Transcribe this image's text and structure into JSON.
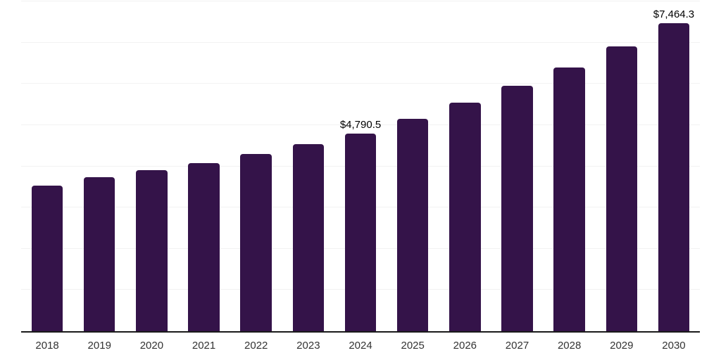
{
  "chart_data": {
    "type": "bar",
    "title": "",
    "xlabel": "",
    "ylabel": "",
    "categories": [
      "2018",
      "2019",
      "2020",
      "2021",
      "2022",
      "2023",
      "2024",
      "2025",
      "2026",
      "2027",
      "2028",
      "2029",
      "2030"
    ],
    "values": [
      3530,
      3740,
      3910,
      4080,
      4300,
      4530,
      4790.5,
      5160,
      5540,
      5960,
      6400,
      6910,
      7464.3
    ],
    "bar_labels": [
      "",
      "",
      "",
      "",
      "",
      "",
      "$4,790.5",
      "",
      "",
      "",
      "",
      "",
      "$7,464.3"
    ],
    "ylim": [
      0,
      8000
    ],
    "gridline_values": [
      1000,
      2000,
      3000,
      4000,
      5000,
      6000,
      7000,
      8000
    ],
    "grid": "horizontal, unlabeled ticks",
    "legend": "none",
    "colors": {
      "bar": "#341349",
      "axis_line": "#1a1a1a",
      "gridline": "#f2f2f2",
      "tick_label": "#333333",
      "value_label": "#000000",
      "background": "#ffffff"
    }
  }
}
